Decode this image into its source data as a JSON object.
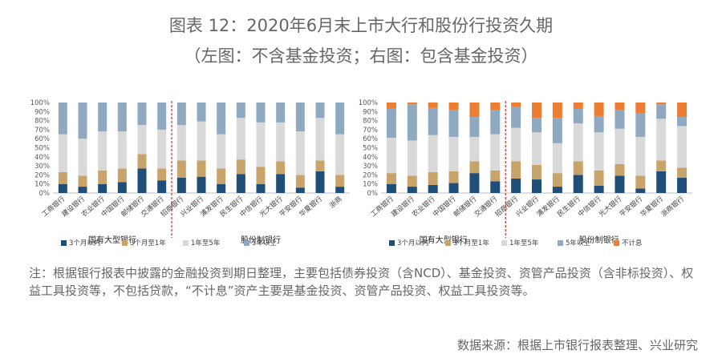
{
  "title": "图表 12：2020年6月末上市大行和股份行投资久期",
  "subtitle": "（左图：不含基金投资；右图：包含基金投资）",
  "note": "注：根据银行报表中披露的金融投资到期日整理，主要包括债券投资（含NCD）、基金投资、资管产品投资（含非标投资）、权益工具投资等，不包括贷款，“不计息”资产主要是基金投资、资管产品投资、权益工具投资等。",
  "source": "数据来源：根据上市银行报表整理、兴业研究",
  "colors": {
    "3个月以内": "#1f4e79",
    "3个月至1年": "#c9a46a",
    "1年至5年": "#d9d9d9",
    "5年以上": "#8faac0",
    "不计息": "#ed7d31",
    "divider": "#c00000"
  },
  "chart_data": [
    {
      "type": "bar",
      "stacked": true,
      "ylim": [
        0,
        100
      ],
      "yticks": [
        "0%",
        "10%",
        "20%",
        "30%",
        "40%",
        "50%",
        "60%",
        "70%",
        "80%",
        "90%",
        "100%"
      ],
      "categories": [
        "工商银行",
        "建设银行",
        "农业银行",
        "中国银行",
        "邮储银行",
        "交通银行",
        "招商银行",
        "兴业银行",
        "浦发银行",
        "民生银行",
        "中信银行",
        "光大银行",
        "平安银行",
        "华夏银行",
        "浙商"
      ],
      "group_labels": [
        "国有大型银行",
        "股份制银行"
      ],
      "legend": [
        "3个月以内",
        "3个月至1年",
        "1年至5年",
        "5年以上"
      ],
      "series": [
        {
          "name": "3个月以内",
          "values": [
            10,
            7,
            10,
            12,
            27,
            14,
            17,
            18,
            10,
            21,
            10,
            21,
            6,
            24,
            7
          ]
        },
        {
          "name": "3个月至1年",
          "values": [
            13,
            12,
            15,
            15,
            16,
            13,
            19,
            18,
            17,
            16,
            19,
            14,
            14,
            12,
            13
          ]
        },
        {
          "name": "1年至5年",
          "values": [
            42,
            41,
            43,
            41,
            32,
            43,
            39,
            43,
            38,
            46,
            49,
            43,
            48,
            47,
            45
          ]
        },
        {
          "name": "5年以上",
          "values": [
            35,
            40,
            32,
            32,
            25,
            30,
            25,
            21,
            35,
            17,
            22,
            22,
            32,
            17,
            35
          ]
        }
      ]
    },
    {
      "type": "bar",
      "stacked": true,
      "ylim": [
        0,
        100
      ],
      "yticks": [
        "0%",
        "10%",
        "20%",
        "30%",
        "40%",
        "50%",
        "60%",
        "70%",
        "80%",
        "90%",
        "100%"
      ],
      "categories": [
        "工商银行",
        "建设银行",
        "农业银行",
        "中国银行",
        "邮储银行",
        "交通银行",
        "招商银行",
        "兴业银行",
        "浦发银行",
        "民生银行",
        "中信银行",
        "光大银行",
        "平安银行",
        "华夏银行",
        "浙商银行"
      ],
      "group_labels": [
        "国有大型银行",
        "股份制银行"
      ],
      "legend": [
        "3个月以内",
        "3个月至1年",
        "1年至5年",
        "5年以上",
        "不计息"
      ],
      "series": [
        {
          "name": "3个月以内",
          "values": [
            10,
            7,
            9,
            11,
            22,
            13,
            16,
            15,
            7,
            20,
            8,
            19,
            5,
            24,
            17
          ]
        },
        {
          "name": "3个月至1年",
          "values": [
            12,
            12,
            14,
            13,
            13,
            12,
            19,
            16,
            15,
            15,
            17,
            13,
            14,
            12,
            11
          ]
        },
        {
          "name": "1年至5年",
          "values": [
            39,
            39,
            41,
            38,
            27,
            40,
            37,
            36,
            33,
            42,
            42,
            39,
            43,
            46,
            46
          ]
        },
        {
          "name": "5年以上",
          "values": [
            32,
            40,
            30,
            30,
            22,
            27,
            23,
            16,
            28,
            16,
            18,
            21,
            26,
            16,
            10
          ]
        },
        {
          "name": "不计息",
          "values": [
            7,
            2,
            6,
            8,
            16,
            8,
            5,
            17,
            17,
            7,
            15,
            8,
            12,
            2,
            16
          ]
        }
      ]
    }
  ]
}
